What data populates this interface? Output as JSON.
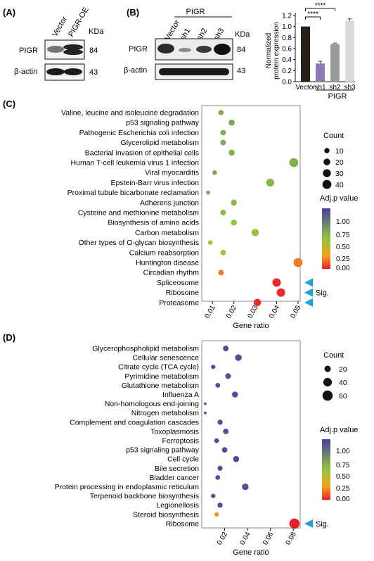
{
  "panels": {
    "A": "(A)",
    "B": "(B)",
    "C": "(C)",
    "D": "(D)"
  },
  "blot_a": {
    "lanes": [
      "Vector",
      "PIGR-OE"
    ],
    "kda_header": "KDa",
    "rows": [
      {
        "label": "PIGR",
        "kda": "84"
      },
      {
        "label": "β-actin",
        "kda": "43"
      }
    ]
  },
  "blot_b": {
    "group_label": "PIGR",
    "lanes": [
      "Vector",
      "sh1",
      "sh2",
      "sh3"
    ],
    "kda_header": "KDa",
    "rows": [
      {
        "label": "PIGR",
        "kda": "84"
      },
      {
        "label": "β-actin",
        "kda": "43"
      }
    ]
  },
  "colors": {
    "scale_low": "#e8202a",
    "scale_mid_low": "#f7a21b",
    "scale_mid": "#8dc63f",
    "scale_high": "#4b3f9e",
    "sig_arrow": "#1ea0d8",
    "bar_vector": "#2b1f1b",
    "bar_sh1": "#8e7bb6",
    "bar_sh2": "#9a9a9a",
    "bar_sh3": "#d9d9d9"
  },
  "chart_data": [
    {
      "type": "bar",
      "categories": [
        "Vector",
        "sh1",
        "sh2",
        "sh3"
      ],
      "values": [
        1.0,
        0.33,
        0.68,
        1.1
      ],
      "errors": [
        0.0,
        0.04,
        0.02,
        0.04
      ],
      "ylabel": "Normalized protein expression",
      "ylim": [
        0,
        1.2
      ],
      "yticks": [
        "0.0",
        "0.2",
        "0.4",
        "0.6",
        "0.8",
        "1.0",
        "1.2"
      ],
      "group_label": "PIGR",
      "significance": [
        {
          "from": "Vector",
          "to": "sh1",
          "label": "****"
        },
        {
          "from": "Vector",
          "to": "sh2",
          "label": "****"
        }
      ]
    },
    {
      "type": "scatter",
      "xlabel": "Gene ratio",
      "xlim": [
        0.005,
        0.051
      ],
      "xticks": [
        "0.01",
        "0.02",
        "0.03",
        "0.04",
        "0.05"
      ],
      "terms": [
        "Valine, leucine and isoleucine degradation",
        "p53 signaling pathway",
        "Pathogenic Escherichia coli infection",
        "Glycerolipid metabolism",
        "Bacterial invasion of epithelial cells",
        "Human T-cell leukemia virus 1 infection",
        "Viral myocarditis",
        "Epstein-Barr virus infection",
        "Proximal tubule bicarbonate reclamation",
        "Adherens junction",
        "Cysteine and methionine metabolism",
        "Biosynthesis of amino acids",
        "Carbon metabolism",
        "Other types of O-glycan biosynthesis",
        "Calcium reabsorption",
        "Huntington disease",
        "Circadian rhythm",
        "Spliceosome",
        "Ribosome",
        "Proteasome"
      ],
      "x": [
        0.014,
        0.019,
        0.015,
        0.015,
        0.019,
        0.048,
        0.011,
        0.037,
        0.008,
        0.02,
        0.015,
        0.02,
        0.03,
        0.009,
        0.015,
        0.05,
        0.014,
        0.04,
        0.042,
        0.031
      ],
      "count": [
        10,
        15,
        12,
        12,
        15,
        40,
        8,
        30,
        5,
        15,
        12,
        15,
        25,
        7,
        12,
        40,
        12,
        35,
        35,
        25
      ],
      "adj_p": [
        0.6,
        0.62,
        0.6,
        0.6,
        0.58,
        0.58,
        0.6,
        0.55,
        0.6,
        0.55,
        0.55,
        0.5,
        0.48,
        0.4,
        0.4,
        0.15,
        0.15,
        0.02,
        0.02,
        0.02
      ],
      "size_legend": {
        "title": "Count",
        "values": [
          "10",
          "20",
          "30",
          "40"
        ]
      },
      "color_legend": {
        "title": "Adj.p value",
        "ticks": [
          "1.00",
          "0.75",
          "0.50",
          "0.25",
          "0.00"
        ]
      },
      "sig_label": "Sig.",
      "sig_rows": [
        17,
        18,
        19
      ]
    },
    {
      "type": "scatter",
      "xlabel": "Gene ratio",
      "xlim": [
        0.0,
        0.086
      ],
      "xticks": [
        "0.02",
        "0.04",
        "0.06",
        "0.08"
      ],
      "terms": [
        "Glycerophospholipid metabolism",
        "Cellular senescence",
        "Citrate cycle (TCA cycle)",
        "Pyrimidine metabolism",
        "Glutathione metabolism",
        "Influenza A",
        "Non-homologous end-joining",
        "Nitrogen metabolism",
        "Complement and coagulation cascades",
        "Toxoplasmosis",
        "Ferroptosis",
        "p53 signaling pathway",
        "Cell cycle",
        "Bile secretion",
        "Bladder cancer",
        "Protein processing in endoplasmic reticulum",
        "Terpenoid backbone biosynthesis",
        "Legionellosis",
        "Steroid biosynthesis",
        "Ribosome"
      ],
      "x": [
        0.021,
        0.032,
        0.01,
        0.023,
        0.014,
        0.029,
        0.003,
        0.003,
        0.016,
        0.021,
        0.013,
        0.02,
        0.03,
        0.016,
        0.014,
        0.038,
        0.01,
        0.016,
        0.013,
        0.081
      ],
      "count": [
        15,
        22,
        8,
        15,
        10,
        18,
        2,
        2,
        12,
        14,
        10,
        14,
        18,
        12,
        10,
        22,
        8,
        12,
        8,
        60
      ],
      "adj_p": [
        0.95,
        0.95,
        0.95,
        0.95,
        0.95,
        0.95,
        0.95,
        0.95,
        0.95,
        0.95,
        0.95,
        0.95,
        0.95,
        0.95,
        0.95,
        0.95,
        0.95,
        0.95,
        0.2,
        0.0
      ],
      "size_legend": {
        "title": "Count",
        "values": [
          "20",
          "40",
          "60"
        ]
      },
      "color_legend": {
        "title": "Adj.p value",
        "ticks": [
          "1.00",
          "0.75",
          "0.50",
          "0.25",
          "0.00"
        ]
      },
      "sig_label": "Sig.",
      "sig_rows": [
        19
      ]
    }
  ]
}
